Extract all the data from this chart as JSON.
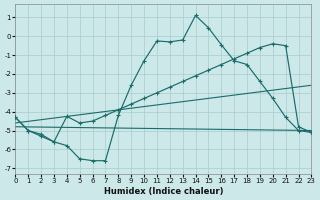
{
  "xlabel": "Humidex (Indice chaleur)",
  "background_color": "#cce8e8",
  "grid_color": "#a8cccc",
  "line_color": "#1a6b6b",
  "xlim": [
    0,
    23
  ],
  "ylim": [
    -7.3,
    1.7
  ],
  "ytick_vals": [
    1,
    0,
    -1,
    -2,
    -3,
    -4,
    -5,
    -6,
    -7
  ],
  "xtick_vals": [
    0,
    1,
    2,
    3,
    4,
    5,
    6,
    7,
    8,
    9,
    10,
    11,
    12,
    13,
    14,
    15,
    16,
    17,
    18,
    19,
    20,
    21,
    22,
    23
  ],
  "line1_x": [
    0,
    1,
    2,
    3,
    4,
    5,
    6,
    7,
    8,
    9,
    10,
    11,
    12,
    13,
    14,
    15,
    16,
    17,
    18,
    19,
    20,
    21,
    22,
    23
  ],
  "line1_y": [
    -4.3,
    -5.0,
    -5.3,
    -5.6,
    -5.8,
    -6.5,
    -6.6,
    -6.6,
    -4.2,
    -2.6,
    -1.3,
    -0.25,
    -0.3,
    -0.2,
    1.1,
    0.45,
    -0.45,
    -1.3,
    -1.5,
    -2.4,
    -3.3,
    -4.3,
    -5.0,
    -5.1
  ],
  "line2_x": [
    0,
    1,
    2,
    3,
    4,
    5,
    6,
    7,
    8,
    9,
    10,
    11,
    12,
    13,
    14,
    15,
    16,
    17,
    18,
    19,
    20,
    21,
    22,
    23
  ],
  "line2_y": [
    -4.3,
    -5.0,
    -5.2,
    -5.6,
    -4.25,
    -4.6,
    -4.5,
    -4.2,
    -3.9,
    -3.6,
    -3.3,
    -3.0,
    -2.7,
    -2.4,
    -2.1,
    -1.8,
    -1.5,
    -1.2,
    -0.9,
    -0.6,
    -0.4,
    -0.5,
    -4.8,
    -5.1
  ],
  "line3_x": [
    0,
    23
  ],
  "line3_y": [
    -4.6,
    -2.6
  ],
  "line4_x": [
    0,
    23
  ],
  "line4_y": [
    -4.8,
    -5.0
  ]
}
